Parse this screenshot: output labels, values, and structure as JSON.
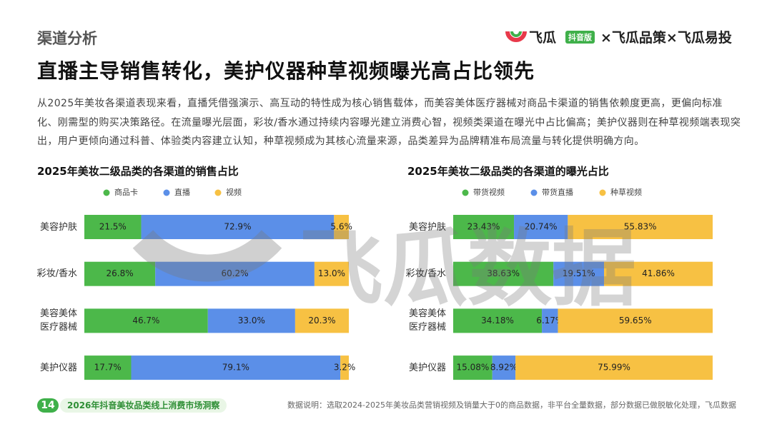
{
  "header": {
    "section": "渠道分析",
    "headline": "直播主导销售转化，美护仪器种草视频曝光高占比领先",
    "paragraph": "从2025年美妆各渠道表现来看，直播凭借强演示、高互动的特性成为核心销售载体，而美容美体医疗器械对商品卡渠道的销售依赖度更高，更偏向标准化、刚需型的购买决策路径。在流量曝光层面，彩妆/香水通过持续内容曝光建立消费心智，视频类渠道在曝光中占比偏高；美护仪器则在种草视频端表现突出，用户更倾向通过科普、体验类内容建立认知，种草视频成为其核心流量来源，品类差异为品牌精准布局流量与转化提供明确方向。"
  },
  "logo": {
    "brand": "飞瓜",
    "edition": "抖音版",
    "partners": "×飞瓜品策×飞瓜易投"
  },
  "watermark": "飞瓜数据",
  "footer": {
    "page": "14",
    "report": "2026年抖音美妆品类线上消费市场洞察",
    "note": "数据说明：选取2024-2025年美妆品类营销视频及销量大于0的商品数据，非平台全量数据，部分数据已做脱敏化处理，飞瓜数据"
  },
  "chart_data": [
    {
      "type": "stacked_bar_h",
      "title": "2025年美妆二级品类的各渠道的销售占比",
      "legend": "top",
      "categories": [
        "美容护肤",
        "彩妆/香水",
        "美容美体\n医疗器械",
        "美护仪器"
      ],
      "xlim": [
        0,
        100
      ],
      "series": [
        {
          "name": "商品卡",
          "color": "#4cb84a",
          "values": [
            21.5,
            26.8,
            46.7,
            17.7
          ],
          "value_labels": [
            "21.5%",
            "26.8%",
            "46.7%",
            "17.7%"
          ]
        },
        {
          "name": "直播",
          "color": "#5b8fe8",
          "values": [
            72.9,
            60.2,
            33.0,
            79.1
          ],
          "value_labels": [
            "72.9%",
            "60.2%",
            "33.0%",
            "79.1%"
          ]
        },
        {
          "name": "视频",
          "color": "#f7c143",
          "values": [
            5.6,
            13.0,
            20.3,
            3.2
          ],
          "value_labels": [
            "5.6%",
            "13.0%",
            "20.3%",
            "3.2%"
          ]
        }
      ]
    },
    {
      "type": "stacked_bar_h",
      "title": "2025年美妆二级品类的各渠道的曝光占比",
      "legend": "top",
      "categories": [
        "美容护肤",
        "彩妆/香水",
        "美容美体\n医疗器械",
        "美护仪器"
      ],
      "xlim": [
        0,
        100
      ],
      "series": [
        {
          "name": "带货视频",
          "color": "#4cb84a",
          "values": [
            23.43,
            38.63,
            34.18,
            15.08
          ],
          "value_labels": [
            "23.43%",
            "38.63%",
            "34.18%",
            "15.08%"
          ]
        },
        {
          "name": "带货直播",
          "color": "#5b8fe8",
          "values": [
            20.74,
            19.51,
            6.17,
            8.92
          ],
          "value_labels": [
            "20.74%",
            "19.51%",
            "6.17%",
            "8.92%"
          ]
        },
        {
          "name": "种草视频",
          "color": "#f7c143",
          "values": [
            55.83,
            41.86,
            59.65,
            75.99
          ],
          "value_labels": [
            "55.83%",
            "41.86%",
            "59.65%",
            "75.99%"
          ]
        }
      ]
    }
  ]
}
